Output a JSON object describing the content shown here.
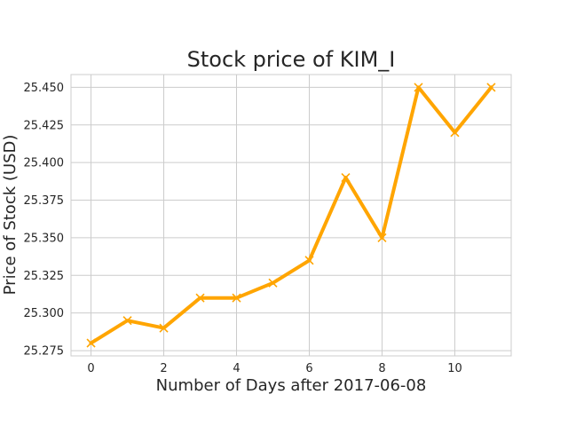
{
  "chart_data": {
    "type": "line",
    "title": "Stock price of KIM_I",
    "xlabel": "Number of Days after 2017-06-08",
    "ylabel": "Price of Stock (USD)",
    "x": [
      0,
      1,
      2,
      3,
      4,
      5,
      6,
      7,
      8,
      9,
      10,
      11
    ],
    "values": [
      25.28,
      25.295,
      25.29,
      25.31,
      25.31,
      25.32,
      25.335,
      25.39,
      25.35,
      25.45,
      25.42,
      25.45
    ],
    "xticks": [
      0,
      2,
      4,
      6,
      8,
      10
    ],
    "xtick_labels": [
      "0",
      "2",
      "4",
      "6",
      "8",
      "10"
    ],
    "yticks": [
      25.275,
      25.3,
      25.325,
      25.35,
      25.375,
      25.4,
      25.425,
      25.45
    ],
    "ytick_labels": [
      "25.275",
      "25.300",
      "25.325",
      "25.350",
      "25.375",
      "25.400",
      "25.425",
      "25.450"
    ],
    "xlim": [
      -0.55,
      11.55
    ],
    "ylim": [
      25.2715,
      25.4585
    ],
    "grid": true,
    "line_color": "#FFA500",
    "marker": "x-marker",
    "grid_color": "#cccccc",
    "spine_color": "#cccccc",
    "text_color": "#262626"
  }
}
